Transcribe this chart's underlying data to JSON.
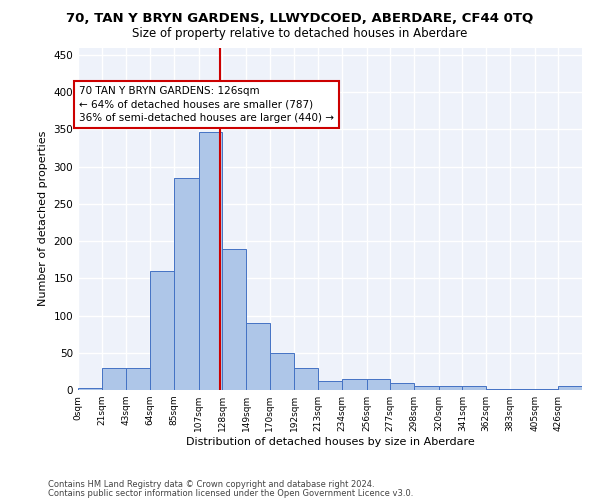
{
  "title": "70, TAN Y BRYN GARDENS, LLWYDCOED, ABERDARE, CF44 0TQ",
  "subtitle": "Size of property relative to detached houses in Aberdare",
  "xlabel": "Distribution of detached houses by size in Aberdare",
  "ylabel": "Number of detached properties",
  "footer_line1": "Contains HM Land Registry data © Crown copyright and database right 2024.",
  "footer_line2": "Contains public sector information licensed under the Open Government Licence v3.0.",
  "bin_edges": [
    0,
    21,
    43,
    64,
    85,
    107,
    128,
    149,
    170,
    192,
    213,
    234,
    256,
    277,
    298,
    320,
    341,
    362,
    383,
    405,
    426,
    447
  ],
  "bar_heights": [
    3,
    30,
    30,
    160,
    285,
    347,
    190,
    90,
    50,
    30,
    12,
    15,
    15,
    10,
    5,
    5,
    5,
    2,
    2,
    2,
    5
  ],
  "bar_color": "#aec6e8",
  "bar_edge_color": "#4472c4",
  "vline_x": 126,
  "vline_color": "#cc0000",
  "annotation_text": "70 TAN Y BRYN GARDENS: 126sqm\n← 64% of detached houses are smaller (787)\n36% of semi-detached houses are larger (440) →",
  "annotation_box_color": "white",
  "annotation_box_edge": "#cc0000",
  "annotation_fontsize": 7.5,
  "ylim": [
    0,
    460
  ],
  "yticks": [
    0,
    50,
    100,
    150,
    200,
    250,
    300,
    350,
    400,
    450
  ],
  "tick_labels": [
    "0sqm",
    "21sqm",
    "43sqm",
    "64sqm",
    "85sqm",
    "107sqm",
    "128sqm",
    "149sqm",
    "170sqm",
    "192sqm",
    "213sqm",
    "234sqm",
    "256sqm",
    "277sqm",
    "298sqm",
    "320sqm",
    "341sqm",
    "362sqm",
    "383sqm",
    "405sqm",
    "426sqm"
  ],
  "background_color": "#eef2fa",
  "grid_color": "#ffffff",
  "title_fontsize": 9.5,
  "subtitle_fontsize": 8.5,
  "axis_label_fontsize": 8,
  "footer_fontsize": 6,
  "ylabel_fontsize": 8,
  "ytick_fontsize": 7.5,
  "xtick_fontsize": 6.5
}
